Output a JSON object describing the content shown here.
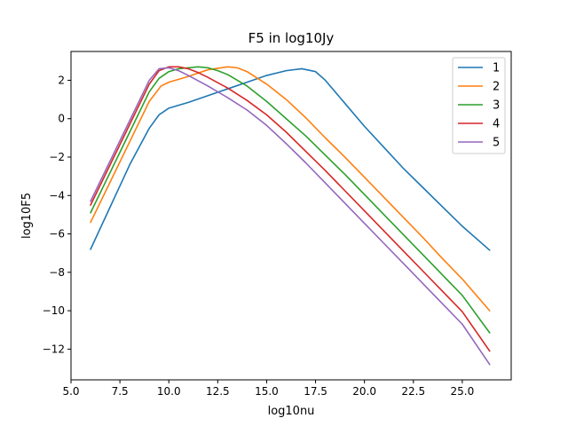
{
  "chart_data": {
    "type": "line",
    "title": "F5 in log10Jy",
    "xlabel": "log10nu",
    "ylabel": "log10F5",
    "xlim": [
      5.0,
      27.5
    ],
    "ylim": [
      -13.6,
      3.5
    ],
    "xticks": [
      5.0,
      7.5,
      10.0,
      12.5,
      15.0,
      17.5,
      20.0,
      22.5,
      25.0
    ],
    "xtick_labels": [
      "5.0",
      "7.5",
      "10.0",
      "12.5",
      "15.0",
      "17.5",
      "20.0",
      "22.5",
      "25.0"
    ],
    "yticks": [
      2,
      0,
      -2,
      -4,
      -6,
      -8,
      -10,
      -12
    ],
    "ytick_labels": [
      "2",
      "0",
      "−2",
      "−4",
      "−6",
      "−8",
      "−10",
      "−12"
    ],
    "grid": false,
    "legend_position": "top-right",
    "series": [
      {
        "name": "1",
        "color": "#1f77b4",
        "x": [
          6.0,
          7.0,
          8.0,
          9.0,
          9.5,
          10.0,
          10.5,
          11.0,
          12.0,
          13.0,
          14.0,
          15.0,
          16.0,
          16.8,
          17.5,
          18.0,
          19.0,
          20.0,
          21.0,
          22.0,
          23.0,
          24.0,
          25.0,
          26.4
        ],
        "y": [
          -6.8,
          -4.6,
          -2.4,
          -0.5,
          0.2,
          0.55,
          0.7,
          0.85,
          1.2,
          1.55,
          1.9,
          2.25,
          2.5,
          2.6,
          2.45,
          2.0,
          0.8,
          -0.4,
          -1.5,
          -2.6,
          -3.6,
          -4.6,
          -5.6,
          -6.85
        ]
      },
      {
        "name": "2",
        "color": "#ff7f0e",
        "x": [
          6.0,
          7.0,
          8.0,
          9.0,
          9.6,
          10.0,
          10.5,
          11.0,
          12.0,
          13.0,
          13.5,
          14.0,
          15.0,
          16.0,
          17.0,
          18.0,
          19.0,
          20.0,
          21.0,
          22.0,
          23.0,
          24.0,
          25.0,
          26.4
        ],
        "y": [
          -5.4,
          -3.3,
          -1.2,
          0.9,
          1.7,
          1.9,
          2.05,
          2.2,
          2.55,
          2.7,
          2.65,
          2.45,
          1.8,
          1.0,
          0.05,
          -1.0,
          -2.0,
          -3.05,
          -4.1,
          -5.15,
          -6.2,
          -7.3,
          -8.35,
          -10.0
        ]
      },
      {
        "name": "3",
        "color": "#2ca02c",
        "x": [
          6.0,
          7.0,
          8.0,
          9.0,
          9.5,
          10.0,
          10.5,
          11.0,
          11.5,
          12.0,
          12.5,
          13.0,
          14.0,
          15.0,
          16.0,
          17.0,
          18.0,
          19.0,
          20.0,
          21.0,
          22.0,
          23.0,
          24.0,
          25.0,
          26.4
        ],
        "y": [
          -4.9,
          -2.8,
          -0.7,
          1.4,
          2.1,
          2.45,
          2.6,
          2.65,
          2.7,
          2.65,
          2.5,
          2.3,
          1.7,
          0.9,
          0.0,
          -0.9,
          -1.9,
          -2.9,
          -3.95,
          -5.0,
          -6.05,
          -7.1,
          -8.15,
          -9.2,
          -11.15
        ]
      },
      {
        "name": "4",
        "color": "#d62728",
        "x": [
          6.0,
          7.0,
          8.0,
          9.0,
          9.5,
          10.0,
          10.5,
          11.0,
          11.5,
          12.0,
          13.0,
          14.0,
          15.0,
          16.0,
          17.0,
          18.0,
          19.0,
          20.0,
          21.0,
          22.0,
          23.0,
          24.0,
          25.0,
          26.4
        ],
        "y": [
          -4.5,
          -2.4,
          -0.3,
          1.8,
          2.5,
          2.7,
          2.7,
          2.6,
          2.4,
          2.15,
          1.6,
          0.95,
          0.2,
          -0.7,
          -1.7,
          -2.7,
          -3.75,
          -4.8,
          -5.85,
          -6.9,
          -7.95,
          -9.0,
          -10.05,
          -12.1
        ]
      },
      {
        "name": "5",
        "color": "#9467bd",
        "x": [
          6.0,
          7.0,
          8.0,
          9.0,
          9.5,
          10.0,
          10.5,
          11.0,
          12.0,
          13.0,
          14.0,
          15.0,
          16.0,
          17.0,
          18.0,
          19.0,
          20.0,
          21.0,
          22.0,
          23.0,
          24.0,
          25.0,
          26.4
        ],
        "y": [
          -4.3,
          -2.2,
          -0.1,
          2.0,
          2.6,
          2.65,
          2.5,
          2.25,
          1.7,
          1.1,
          0.45,
          -0.35,
          -1.3,
          -2.3,
          -3.35,
          -4.4,
          -5.45,
          -6.5,
          -7.55,
          -8.6,
          -9.65,
          -10.7,
          -12.8
        ]
      }
    ]
  }
}
